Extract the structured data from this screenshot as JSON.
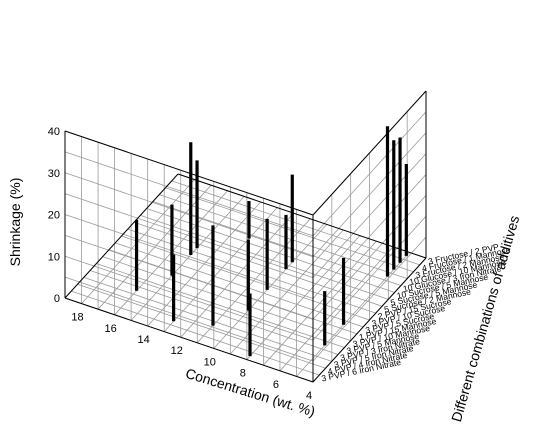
{
  "chart_data": {
    "type": "bar3d",
    "title": "",
    "xlabel": "Concentration (wt. %)",
    "ylabel": "Different combinations of additives",
    "zlabel": "Shrinkage (%)",
    "x_ticks": [
      "18",
      "16",
      "14",
      "12",
      "10",
      "8",
      "6",
      "4"
    ],
    "z_ticks": [
      "0",
      "10",
      "20",
      "30",
      "40"
    ],
    "xlim": [
      4,
      19
    ],
    "zlim": [
      0,
      40
    ],
    "grid": true,
    "categories": [
      "3 Fructose / 2 PVP",
      "4 Fructose / 1 Mannose",
      "3 Fructose / 2 Mannose",
      "10 Glucose / 10 Mannose",
      "10 Glucose / 3 Iron Nitrate",
      "10 Sucrose / 5 Mannose",
      "5 Sucrose / 5 Mannose",
      "5 Sucrose / 2 Mannose",
      "2 PVP / 15 Sucrose",
      "3 PVP / 10 Sucrose",
      "3 PVP / 5 Sucrose",
      "1 PVP / 15 Mannose",
      "3 PVP / 10 Mannose",
      "3 PVP / 5 Mannose",
      "3 PVP / 3 Iron Nitrate",
      "3 PVP / 5 Iron Nitrate",
      "4 PVP / 4 Iron Nitrate",
      "3 PVP / 6 Iron Nitrate"
    ],
    "points": [
      {
        "category": "3 Fructose / 2 PVP",
        "x": 5,
        "z": 22
      },
      {
        "category": "4 Fructose / 1 Mannose",
        "x": 5,
        "z": 30
      },
      {
        "category": "3 Fructose / 2 Mannose",
        "x": 5,
        "z": 31
      },
      {
        "category": "10 Glucose / 10 Mannose",
        "x": 5,
        "z": 36
      },
      {
        "category": "10 Glucose / 3 Iron Nitrate",
        "x": 13,
        "z": 9
      },
      {
        "category": "10 Sucrose / 5 Mannose",
        "x": 10,
        "z": 21
      },
      {
        "category": "5 Sucrose / 5 Mannose",
        "x": 10,
        "z": 13
      },
      {
        "category": "5 Sucrose / 2 Mannose",
        "x": 15,
        "z": 21
      },
      {
        "category": "2 PVP / 15 Sucrose",
        "x": 15,
        "z": 27
      },
      {
        "category": "3 PVP / 10 Sucrose",
        "x": 10,
        "z": 17
      },
      {
        "category": "3 PVP / 5 Sucrose",
        "x": 5,
        "z": 16
      },
      {
        "category": "1 PVP / 15 Mannose",
        "x": 15,
        "z": 17
      },
      {
        "category": "3 PVP / 10 Mannose",
        "x": 10,
        "z": 17
      },
      {
        "category": "3 PVP / 5 Mannose",
        "x": 5,
        "z": 13
      },
      {
        "category": "3 PVP / 3 Iron Nitrate",
        "x": 16,
        "z": 17
      },
      {
        "category": "3 PVP / 5 Iron Nitrate",
        "x": 11,
        "z": 24
      },
      {
        "category": "4 PVP / 4 Iron Nitrate",
        "x": 13,
        "z": 16
      },
      {
        "category": "3 PVP / 6 Iron Nitrate",
        "x": 8,
        "z": 15
      }
    ]
  }
}
